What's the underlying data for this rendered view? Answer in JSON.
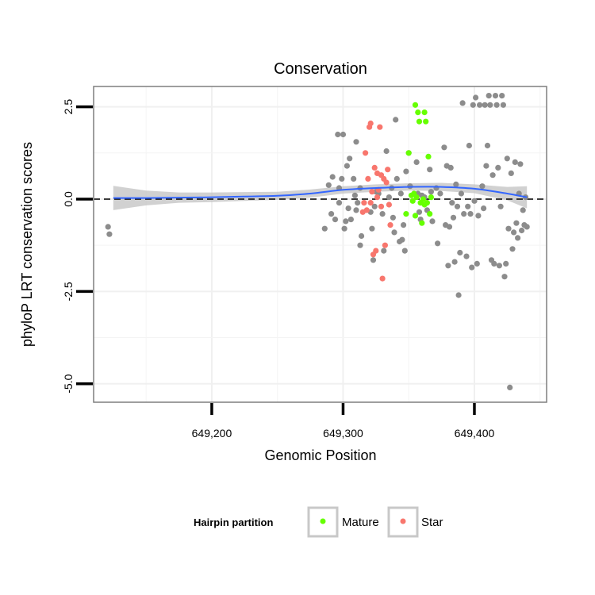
{
  "chart_data": {
    "type": "scatter",
    "title": "Conservation",
    "xlabel": "Genomic Position",
    "ylabel": "phyloP LRT conservation scores",
    "xlim": [
      649110,
      649455
    ],
    "ylim": [
      -5.5,
      3.05
    ],
    "x_ticks": [
      649200,
      649300,
      649400
    ],
    "x_tick_labels": [
      "649,200",
      "649,300",
      "649,400"
    ],
    "y_ticks": [
      -5.0,
      -2.5,
      0.0,
      2.5
    ],
    "y_tick_labels": [
      "-5.0",
      "-2.5",
      "0.0",
      "2.5"
    ],
    "reference_line": {
      "y": 0,
      "style": "dashed"
    },
    "legend": {
      "title": "Hairpin partition",
      "position": "bottom",
      "entries": [
        {
          "label": "Mature",
          "color": "#66ff00"
        },
        {
          "label": "Star",
          "color": "#f8766d"
        }
      ]
    },
    "colors": {
      "other": "#8c8c8c",
      "Mature": "#66ff00",
      "Star": "#f8766d",
      "smooth": "#3366ff",
      "band": "#bdbdbd"
    },
    "series": [
      {
        "name": "Other",
        "points": [
          [
            649121,
            -0.75
          ],
          [
            649122,
            -0.95
          ],
          [
            649286,
            -0.8
          ],
          [
            649289,
            0.38
          ],
          [
            649291,
            -0.4
          ],
          [
            649292,
            0.6
          ],
          [
            649294,
            -0.55
          ],
          [
            649296,
            1.75
          ],
          [
            649297,
            0.3
          ],
          [
            649297,
            -0.1
          ],
          [
            649299,
            0.55
          ],
          [
            649300,
            1.75
          ],
          [
            649301,
            -0.8
          ],
          [
            649302,
            -0.6
          ],
          [
            649303,
            0.9
          ],
          [
            649304,
            -0.25
          ],
          [
            649305,
            1.1
          ],
          [
            649306,
            -0.55
          ],
          [
            649308,
            0.55
          ],
          [
            649309,
            0.1
          ],
          [
            649310,
            1.55
          ],
          [
            649310,
            -0.3
          ],
          [
            649311,
            -0.1
          ],
          [
            649313,
            -1.25
          ],
          [
            649313,
            0.3
          ],
          [
            649314,
            -1.0
          ],
          [
            649321,
            -0.35
          ],
          [
            649322,
            -0.8
          ],
          [
            649323,
            -1.65
          ],
          [
            649324,
            -0.2
          ],
          [
            649325,
            0.2
          ],
          [
            649327,
            0.15
          ],
          [
            649330,
            -0.4
          ],
          [
            649331,
            -1.4
          ],
          [
            649333,
            1.3
          ],
          [
            649335,
            0.05
          ],
          [
            649337,
            0.3
          ],
          [
            649338,
            -0.5
          ],
          [
            649339,
            -0.9
          ],
          [
            649340,
            2.15
          ],
          [
            649341,
            0.55
          ],
          [
            649343,
            -1.15
          ],
          [
            649344,
            0.15
          ],
          [
            649345,
            -1.1
          ],
          [
            649346,
            -0.7
          ],
          [
            649347,
            -1.4
          ],
          [
            649348,
            0.75
          ],
          [
            649350,
            1.25
          ],
          [
            649351,
            0.35
          ],
          [
            649356,
            1.0
          ],
          [
            649357,
            0.15
          ],
          [
            649358,
            -0.35
          ],
          [
            649359,
            -0.55
          ],
          [
            649360,
            0.1
          ],
          [
            649362,
            0.05
          ],
          [
            649364,
            -0.3
          ],
          [
            649366,
            0.8
          ],
          [
            649367,
            0.2
          ],
          [
            649368,
            -0.6
          ],
          [
            649371,
            0.3
          ],
          [
            649372,
            -1.2
          ],
          [
            649374,
            0.15
          ],
          [
            649377,
            1.4
          ],
          [
            649378,
            -0.7
          ],
          [
            649379,
            0.9
          ],
          [
            649380,
            -1.8
          ],
          [
            649381,
            -0.75
          ],
          [
            649382,
            0.85
          ],
          [
            649383,
            -0.1
          ],
          [
            649384,
            -0.5
          ],
          [
            649385,
            -1.7
          ],
          [
            649386,
            0.4
          ],
          [
            649387,
            -0.2
          ],
          [
            649388,
            -2.6
          ],
          [
            649389,
            -1.45
          ],
          [
            649390,
            0.15
          ],
          [
            649391,
            2.6
          ],
          [
            649392,
            -0.4
          ],
          [
            649394,
            -1.55
          ],
          [
            649395,
            -0.2
          ],
          [
            649396,
            1.45
          ],
          [
            649397,
            -0.4
          ],
          [
            649398,
            -1.85
          ],
          [
            649399,
            2.55
          ],
          [
            649400,
            -0.05
          ],
          [
            649401,
            2.75
          ],
          [
            649402,
            -1.75
          ],
          [
            649403,
            -0.45
          ],
          [
            649404,
            2.55
          ],
          [
            649406,
            0.35
          ],
          [
            649407,
            -0.25
          ],
          [
            649408,
            2.55
          ],
          [
            649409,
            0.9
          ],
          [
            649410,
            1.45
          ],
          [
            649411,
            2.8
          ],
          [
            649412,
            2.55
          ],
          [
            649413,
            -1.65
          ],
          [
            649414,
            0.65
          ],
          [
            649415,
            -1.75
          ],
          [
            649416,
            2.8
          ],
          [
            649417,
            2.55
          ],
          [
            649418,
            0.85
          ],
          [
            649419,
            -1.8
          ],
          [
            649420,
            -0.2
          ],
          [
            649421,
            2.8
          ],
          [
            649422,
            2.55
          ],
          [
            649423,
            -2.1
          ],
          [
            649424,
            -1.75
          ],
          [
            649425,
            1.1
          ],
          [
            649426,
            -0.8
          ],
          [
            649427,
            -5.1
          ],
          [
            649428,
            0.7
          ],
          [
            649429,
            -1.35
          ],
          [
            649430,
            -0.9
          ],
          [
            649431,
            1.0
          ],
          [
            649432,
            -0.65
          ],
          [
            649433,
            -1.05
          ],
          [
            649434,
            0.15
          ],
          [
            649435,
            0.95
          ],
          [
            649436,
            -0.85
          ],
          [
            649437,
            -0.3
          ],
          [
            649438,
            -0.7
          ],
          [
            649439,
            0.05
          ],
          [
            649440,
            -0.75
          ]
        ]
      },
      {
        "name": "Mature",
        "points": [
          [
            649350,
            1.25
          ],
          [
            649352,
            0.1
          ],
          [
            649353,
            -0.05
          ],
          [
            649354,
            0.15
          ],
          [
            649355,
            2.55
          ],
          [
            649355,
            -0.45
          ],
          [
            649357,
            2.35
          ],
          [
            649358,
            2.1
          ],
          [
            649359,
            -0.1
          ],
          [
            649360,
            -0.65
          ],
          [
            649361,
            0.0
          ],
          [
            649362,
            2.35
          ],
          [
            649362,
            -0.15
          ],
          [
            649363,
            2.1
          ],
          [
            649364,
            -0.1
          ],
          [
            649365,
            1.15
          ],
          [
            649366,
            -0.4
          ],
          [
            649367,
            0.05
          ],
          [
            649356,
            0.05
          ],
          [
            649348,
            -0.4
          ]
        ]
      },
      {
        "name": "Star",
        "points": [
          [
            649315,
            -0.35
          ],
          [
            649316,
            -0.1
          ],
          [
            649317,
            1.25
          ],
          [
            649318,
            -0.3
          ],
          [
            649319,
            0.55
          ],
          [
            649320,
            1.95
          ],
          [
            649321,
            2.05
          ],
          [
            649321,
            -0.1
          ],
          [
            649322,
            0.2
          ],
          [
            649323,
            -1.5
          ],
          [
            649324,
            0.85
          ],
          [
            649325,
            -1.4
          ],
          [
            649326,
            0.7
          ],
          [
            649326,
            0.05
          ],
          [
            649327,
            0.25
          ],
          [
            649328,
            1.95
          ],
          [
            649329,
            0.65
          ],
          [
            649329,
            -0.2
          ],
          [
            649330,
            -2.15
          ],
          [
            649331,
            0.55
          ],
          [
            649332,
            -1.25
          ],
          [
            649333,
            0.45
          ],
          [
            649334,
            0.8
          ],
          [
            649335,
            -0.15
          ],
          [
            649336,
            -0.7
          ]
        ]
      }
    ],
    "smooth": {
      "method": "loess",
      "x": [
        649125,
        649150,
        649175,
        649200,
        649225,
        649250,
        649275,
        649300,
        649325,
        649350,
        649375,
        649400,
        649425,
        649440
      ],
      "y": [
        0.03,
        0.03,
        0.04,
        0.05,
        0.07,
        0.09,
        0.15,
        0.25,
        0.3,
        0.33,
        0.33,
        0.28,
        0.15,
        0.05
      ],
      "ci_half_width": [
        0.33,
        0.2,
        0.14,
        0.13,
        0.12,
        0.11,
        0.11,
        0.1,
        0.1,
        0.1,
        0.11,
        0.12,
        0.18,
        0.3
      ]
    }
  }
}
